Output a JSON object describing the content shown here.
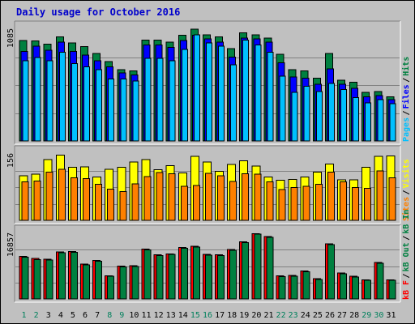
{
  "chart_data": {
    "type": "bar",
    "title": "Daily usage for October 2016",
    "days": [
      "1",
      "2",
      "3",
      "4",
      "5",
      "6",
      "7",
      "8",
      "9",
      "10",
      "11",
      "12",
      "13",
      "14",
      "15",
      "16",
      "17",
      "18",
      "19",
      "20",
      "21",
      "22",
      "23",
      "24",
      "25",
      "26",
      "27",
      "28",
      "29",
      "30",
      "31"
    ],
    "weekend_days": [
      "1",
      "2",
      "8",
      "9",
      "15",
      "16",
      "22",
      "23",
      "29",
      "30"
    ],
    "panels": [
      {
        "id": "requests",
        "ytick": "1085",
        "ymax": 1085,
        "legend": [
          {
            "label": "Hits",
            "color": "#008040"
          },
          {
            "label": "Files",
            "color": "#0000FF"
          },
          {
            "label": "Pages",
            "color": "#00C0FF"
          }
        ],
        "series": [
          {
            "name": "Hits",
            "color": "#008040",
            "values": [
              975,
              970,
              940,
              1010,
              950,
              915,
              850,
              770,
              690,
              680,
              980,
              980,
              960,
              1025,
              1085,
              1030,
              1010,
              895,
              1050,
              1030,
              1000,
              840,
              690,
              680,
              610,
              850,
              590,
              570,
              470,
              480,
              430
            ]
          },
          {
            "name": "Files",
            "color": "#0000FF",
            "values": [
              870,
              920,
              880,
              960,
              870,
              835,
              780,
              720,
              660,
              640,
              930,
              930,
              910,
              975,
              1025,
              990,
              960,
              815,
              1000,
              990,
              960,
              760,
              620,
              610,
              550,
              700,
              550,
              510,
              430,
              440,
              400
            ]
          },
          {
            "name": "Pages",
            "color": "#00C0FF",
            "values": [
              780,
              810,
              780,
              860,
              750,
              720,
              690,
              600,
              600,
              580,
              800,
              800,
              780,
              890,
              1030,
              950,
              920,
              740,
              980,
              930,
              860,
              630,
              470,
              530,
              480,
              560,
              500,
              420,
              370,
              400,
              360
            ]
          }
        ]
      },
      {
        "id": "visits",
        "ytick": "156",
        "ymax": 156,
        "legend": [
          {
            "label": "Visits",
            "color": "#FFFF00"
          },
          {
            "label": "Sites",
            "color": "#FF8000"
          }
        ],
        "series": [
          {
            "name": "Visits",
            "color": "#FFFF00",
            "values": [
              105,
              108,
              143,
              153,
              125,
              126,
              102,
              120,
              125,
              137,
              143,
              119,
              128,
              111,
              150,
              137,
              115,
              131,
              140,
              127,
              102,
              94,
              96,
              102,
              113,
              132,
              95,
              95,
              125,
              150,
              151
            ]
          },
          {
            "name": "Sites",
            "color": "#FF8000",
            "values": [
              90,
              92,
              113,
              120,
              100,
              98,
              85,
              73,
              68,
              86,
              103,
              112,
              109,
              80,
              82,
              110,
              105,
              91,
              109,
              108,
              90,
              72,
              77,
              80,
              85,
              113,
              90,
              77,
              75,
              116,
              100
            ]
          }
        ]
      },
      {
        "id": "volume",
        "ytick": "16857",
        "ymax": 16857,
        "legend": [
          {
            "label": "kB In",
            "color": "#008040"
          },
          {
            "label": "kB Out",
            "color": "#008040"
          },
          {
            "label": "kB F",
            "color": "#FF0000"
          }
        ],
        "series": [
          {
            "name": "kB F",
            "color": "#FF0000",
            "values": [
              10900,
              10400,
              10200,
              12100,
              12200,
              8900,
              9900,
              5900,
              8400,
              8500,
              12800,
              11300,
              11600,
              13200,
              13500,
              11400,
              11300,
              12700,
              14700,
              16800,
              16000,
              5900,
              6000,
              7200,
              5200,
              14100,
              6700,
              5800,
              4900,
              9400,
              4900
            ]
          },
          {
            "name": "kB In",
            "color": "#008040",
            "values": [
              10700,
              10100,
              10000,
              11900,
              12000,
              8700,
              9700,
              5800,
              8200,
              8300,
              12600,
              11100,
              11400,
              13000,
              13300,
              11200,
              11100,
              12500,
              14500,
              16600,
              15800,
              5700,
              5800,
              7000,
              5000,
              13900,
              6500,
              5600,
              4800,
              9200,
              4800
            ]
          }
        ]
      }
    ]
  }
}
